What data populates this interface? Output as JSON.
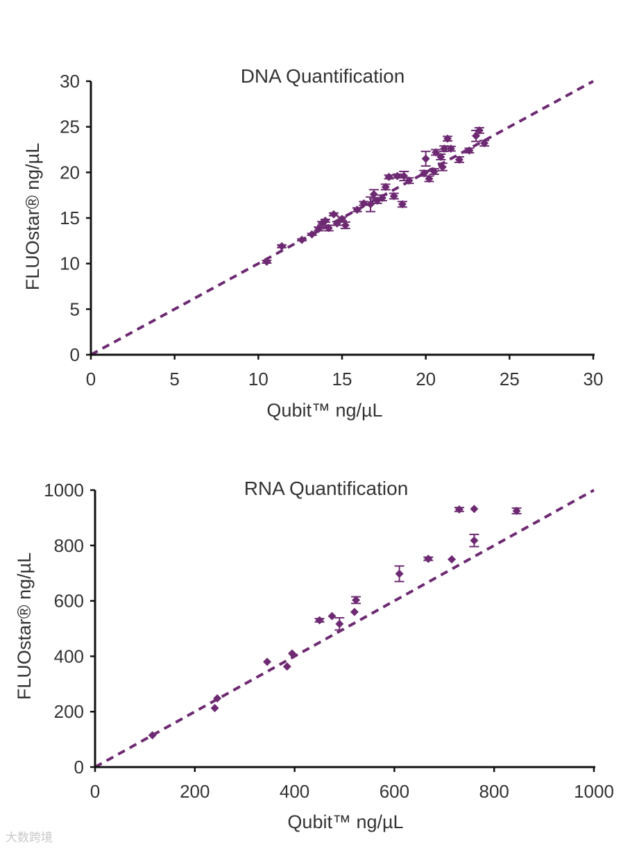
{
  "chart_data": [
    {
      "type": "scatter",
      "title": "DNA Quantification",
      "xlabel": "Qubit™ ng/µL",
      "ylabel": "FLUOstar® ng/µL",
      "xlim": [
        0,
        30
      ],
      "ylim": [
        0,
        30
      ],
      "xticks": [
        "0",
        "5",
        "10",
        "15",
        "20",
        "25",
        "30"
      ],
      "yticks": [
        "0",
        "5",
        "10",
        "15",
        "20",
        "25",
        "30"
      ],
      "color": "#6d2a72",
      "reference_line": {
        "style": "dashed",
        "from": [
          0,
          0
        ],
        "to": [
          30,
          30
        ]
      },
      "points": [
        {
          "x": 10.5,
          "y": 10.2,
          "err": 0.15
        },
        {
          "x": 11.4,
          "y": 11.9,
          "err": 0.15
        },
        {
          "x": 12.6,
          "y": 12.6,
          "err": 0.1
        },
        {
          "x": 13.2,
          "y": 13.2,
          "err": 0.1
        },
        {
          "x": 13.6,
          "y": 13.8,
          "err": 0.2
        },
        {
          "x": 13.8,
          "y": 14.4,
          "err": 0.2
        },
        {
          "x": 14.0,
          "y": 14.7,
          "err": 0.15
        },
        {
          "x": 14.2,
          "y": 13.9,
          "err": 0.3
        },
        {
          "x": 14.5,
          "y": 15.4,
          "err": 0.15
        },
        {
          "x": 14.7,
          "y": 14.4,
          "err": 0.2
        },
        {
          "x": 15.0,
          "y": 14.9,
          "err": 0.2
        },
        {
          "x": 15.2,
          "y": 14.2,
          "err": 0.35
        },
        {
          "x": 15.9,
          "y": 15.9,
          "err": 0.2
        },
        {
          "x": 16.3,
          "y": 16.6,
          "err": 0.2
        },
        {
          "x": 16.7,
          "y": 16.5,
          "err": 0.8
        },
        {
          "x": 16.9,
          "y": 17.6,
          "err": 0.5
        },
        {
          "x": 17.1,
          "y": 16.9,
          "err": 0.3
        },
        {
          "x": 17.4,
          "y": 17.2,
          "err": 0.3
        },
        {
          "x": 17.6,
          "y": 18.4,
          "err": 0.3
        },
        {
          "x": 17.8,
          "y": 19.5,
          "err": 0.2
        },
        {
          "x": 18.1,
          "y": 17.4,
          "err": 0.3
        },
        {
          "x": 18.3,
          "y": 19.6,
          "err": 0.2
        },
        {
          "x": 18.6,
          "y": 16.5,
          "err": 0.3
        },
        {
          "x": 18.7,
          "y": 19.6,
          "err": 0.5
        },
        {
          "x": 19.0,
          "y": 19.1,
          "err": 0.3
        },
        {
          "x": 19.9,
          "y": 19.9,
          "err": 0.3
        },
        {
          "x": 20.0,
          "y": 21.5,
          "err": 0.8
        },
        {
          "x": 20.2,
          "y": 19.3,
          "err": 0.3
        },
        {
          "x": 20.5,
          "y": 20.1,
          "err": 0.3
        },
        {
          "x": 20.6,
          "y": 22.2,
          "err": 0.3
        },
        {
          "x": 20.9,
          "y": 21.7,
          "err": 0.3
        },
        {
          "x": 21.0,
          "y": 20.6,
          "err": 0.4
        },
        {
          "x": 21.1,
          "y": 22.6,
          "err": 0.3
        },
        {
          "x": 21.3,
          "y": 23.7,
          "err": 0.25
        },
        {
          "x": 21.5,
          "y": 22.6,
          "err": 0.25
        },
        {
          "x": 22.0,
          "y": 21.4,
          "err": 0.3
        },
        {
          "x": 22.6,
          "y": 22.4,
          "err": 0.25
        },
        {
          "x": 23.0,
          "y": 24.0,
          "err": 0.6
        },
        {
          "x": 23.2,
          "y": 24.6,
          "err": 0.3
        },
        {
          "x": 23.5,
          "y": 23.2,
          "err": 0.3
        }
      ]
    },
    {
      "type": "scatter",
      "title": "RNA Quantification",
      "xlabel": "Qubit™ ng/µL",
      "ylabel": "FLUOstar® ng/µL",
      "xlim": [
        0,
        1000
      ],
      "ylim": [
        0,
        1000
      ],
      "xticks": [
        "0",
        "200",
        "400",
        "600",
        "800",
        "1000"
      ],
      "yticks": [
        "0",
        "200",
        "400",
        "600",
        "800",
        "1000"
      ],
      "color": "#6d2a72",
      "reference_line": {
        "style": "dashed",
        "from": [
          0,
          0
        ],
        "to": [
          1000,
          1000
        ]
      },
      "points": [
        {
          "x": 115,
          "y": 115,
          "err": 0
        },
        {
          "x": 240,
          "y": 213,
          "err": 0
        },
        {
          "x": 245,
          "y": 248,
          "err": 0
        },
        {
          "x": 345,
          "y": 380,
          "err": 0
        },
        {
          "x": 385,
          "y": 363,
          "err": 0
        },
        {
          "x": 395,
          "y": 410,
          "err": 0
        },
        {
          "x": 450,
          "y": 530,
          "err": 6
        },
        {
          "x": 475,
          "y": 545,
          "err": 0
        },
        {
          "x": 490,
          "y": 517,
          "err": 22
        },
        {
          "x": 520,
          "y": 560,
          "err": 0
        },
        {
          "x": 523,
          "y": 603,
          "err": 12
        },
        {
          "x": 610,
          "y": 698,
          "err": 28
        },
        {
          "x": 668,
          "y": 752,
          "err": 6
        },
        {
          "x": 715,
          "y": 750,
          "err": 0
        },
        {
          "x": 730,
          "y": 930,
          "err": 7
        },
        {
          "x": 760,
          "y": 932,
          "err": 0
        },
        {
          "x": 760,
          "y": 818,
          "err": 22
        },
        {
          "x": 845,
          "y": 925,
          "err": 10
        }
      ]
    }
  ],
  "watermark": "大数跨境"
}
